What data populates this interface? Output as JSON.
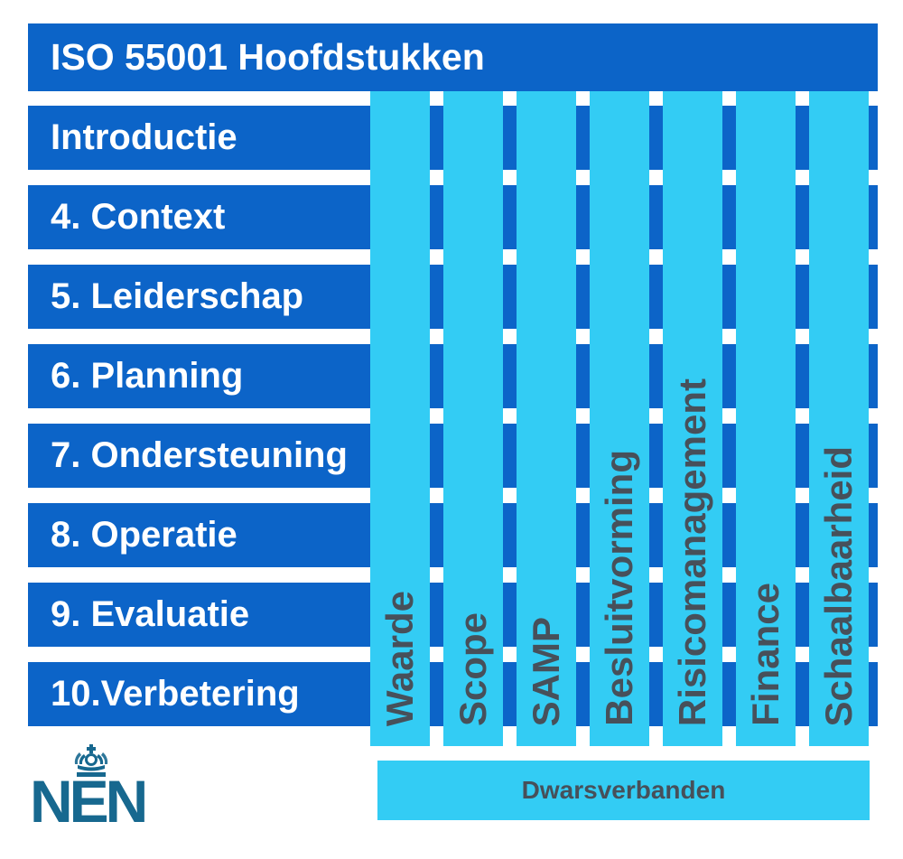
{
  "title": "ISO 55001 Hoofdstukken",
  "chapters": [
    "Introductie",
    "4. Context",
    "5. Leiderschap",
    "6. Planning",
    "7. Ondersteuning",
    "8. Operatie",
    "9. Evaluatie",
    "10.Verbetering"
  ],
  "crosslinks": [
    "Waarde",
    "Scope",
    "SAMP",
    "Besluitvorming",
    "Risicomanagement",
    "Finance",
    "Schaalbaarheid"
  ],
  "footer": {
    "label": "Dwarsverbanden"
  },
  "logo": {
    "text": "NEN"
  },
  "colors": {
    "bar_blue": "#0c64c8",
    "column_cyan": "#33ccf4",
    "label_gray": "#47505a",
    "logo_teal": "#17688f"
  }
}
